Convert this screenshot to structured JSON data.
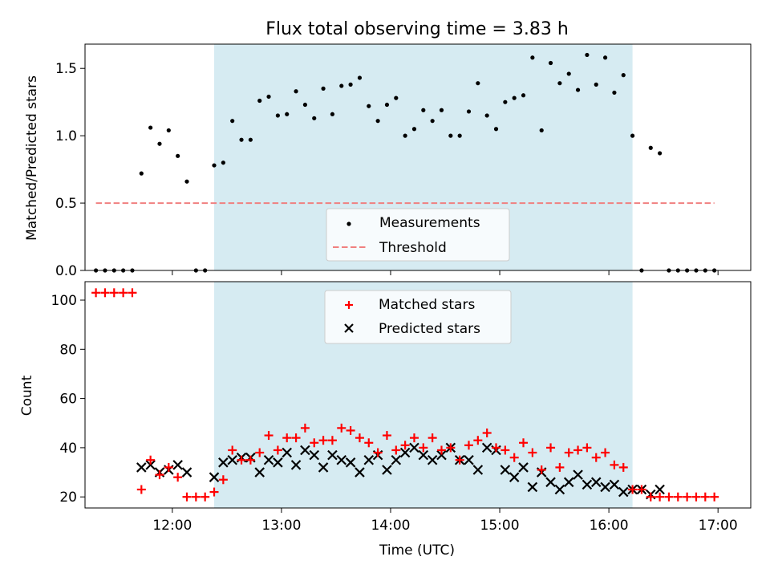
{
  "chart_data": [
    {
      "type": "scatter",
      "title": "Flux total observing time = 3.83 h",
      "xlabel": "",
      "ylabel": "Matched/Predicted stars",
      "xlim": [
        "11:12",
        "17:18"
      ],
      "ylim": [
        0,
        1.68
      ],
      "yticks": [
        "0.0",
        "0.5",
        "1.0",
        "1.5"
      ],
      "shaded_interval": [
        "12:23",
        "16:13"
      ],
      "legend": {
        "placement": "bottom-center",
        "entries": [
          "Measurements",
          "Threshold"
        ]
      },
      "series": [
        {
          "name": "Measurements",
          "marker": "dot",
          "color": "#000000",
          "x": [
            "11:18",
            "11:23",
            "11:28",
            "11:33",
            "11:38",
            "11:43",
            "11:48",
            "11:53",
            "11:58",
            "12:03",
            "12:08",
            "12:13",
            "12:18",
            "12:23",
            "12:28",
            "12:33",
            "12:38",
            "12:43",
            "12:48",
            "12:53",
            "12:58",
            "13:03",
            "13:08",
            "13:13",
            "13:18",
            "13:23",
            "13:28",
            "13:33",
            "13:38",
            "13:43",
            "13:48",
            "13:53",
            "13:58",
            "14:03",
            "14:08",
            "14:13",
            "14:18",
            "14:23",
            "14:28",
            "14:33",
            "14:38",
            "14:43",
            "14:48",
            "14:53",
            "14:58",
            "15:03",
            "15:08",
            "15:13",
            "15:18",
            "15:23",
            "15:28",
            "15:33",
            "15:38",
            "15:43",
            "15:48",
            "15:53",
            "15:58",
            "16:03",
            "16:08",
            "16:13",
            "16:18",
            "16:23",
            "16:28",
            "16:33",
            "16:38",
            "16:43",
            "16:48",
            "16:53",
            "16:58"
          ],
          "y": [
            0,
            0,
            0,
            0,
            0,
            0.72,
            1.06,
            0.94,
            1.04,
            0.85,
            0.66,
            0,
            0,
            0.78,
            0.8,
            1.11,
            0.97,
            0.97,
            1.26,
            1.29,
            1.15,
            1.16,
            1.33,
            1.23,
            1.13,
            1.35,
            1.16,
            1.37,
            1.38,
            1.43,
            1.22,
            1.11,
            1.23,
            1.28,
            1.0,
            1.05,
            1.19,
            1.11,
            1.19,
            1.0,
            1.0,
            1.18,
            1.39,
            1.15,
            1.05,
            1.25,
            1.28,
            1.3,
            1.58,
            1.04,
            1.54,
            1.39,
            1.46,
            1.34,
            1.6,
            1.38,
            1.58,
            1.32,
            1.45,
            1.0,
            0,
            0.91,
            0.87,
            0,
            0,
            0,
            0,
            0,
            0
          ]
        },
        {
          "name": "Threshold",
          "marker": "dashed-line",
          "color": "#f08080",
          "x": [
            "11:18",
            "16:58"
          ],
          "y": [
            0.5,
            0.5
          ]
        }
      ]
    },
    {
      "type": "scatter",
      "title": "",
      "xlabel": "Time (UTC)",
      "ylabel": "Count",
      "xlim": [
        "11:12",
        "17:18"
      ],
      "ylim": [
        15.5,
        107.5
      ],
      "xticks": [
        "12:00",
        "13:00",
        "14:00",
        "15:00",
        "16:00",
        "17:00"
      ],
      "yticks": [
        "20",
        "40",
        "60",
        "80",
        "100"
      ],
      "shaded_interval": [
        "12:23",
        "16:13"
      ],
      "legend": {
        "placement": "top-center",
        "entries": [
          "Matched stars",
          "Predicted stars"
        ]
      },
      "series": [
        {
          "name": "Matched stars",
          "marker": "plus",
          "color": "#ff0000",
          "x": [
            "11:18",
            "11:23",
            "11:28",
            "11:33",
            "11:38",
            "11:43",
            "11:48",
            "11:53",
            "11:58",
            "12:03",
            "12:08",
            "12:13",
            "12:18",
            "12:23",
            "12:28",
            "12:33",
            "12:38",
            "12:43",
            "12:48",
            "12:53",
            "12:58",
            "13:03",
            "13:08",
            "13:13",
            "13:18",
            "13:23",
            "13:28",
            "13:33",
            "13:38",
            "13:43",
            "13:48",
            "13:53",
            "13:58",
            "14:03",
            "14:08",
            "14:13",
            "14:18",
            "14:23",
            "14:28",
            "14:33",
            "14:38",
            "14:43",
            "14:48",
            "14:53",
            "14:58",
            "15:03",
            "15:08",
            "15:13",
            "15:18",
            "15:23",
            "15:28",
            "15:33",
            "15:38",
            "15:43",
            "15:48",
            "15:53",
            "15:58",
            "16:03",
            "16:08",
            "16:13",
            "16:18",
            "16:23",
            "16:28",
            "16:33",
            "16:38",
            "16:43",
            "16:48",
            "16:53",
            "16:58"
          ],
          "y": [
            103,
            103,
            103,
            103,
            103,
            23,
            35,
            29,
            32,
            28,
            20,
            20,
            20,
            22,
            27,
            39,
            35,
            35,
            38,
            45,
            39,
            44,
            44,
            48,
            42,
            43,
            43,
            48,
            47,
            44,
            42,
            38,
            45,
            39,
            41,
            44,
            40,
            44,
            39,
            40,
            35,
            41,
            43,
            46,
            40,
            39,
            36,
            42,
            38,
            31,
            40,
            32,
            38,
            39,
            40,
            36,
            38,
            33,
            32,
            23,
            23,
            20,
            20,
            20,
            20,
            20,
            20,
            20,
            20
          ]
        },
        {
          "name": "Predicted stars",
          "marker": "x",
          "color": "#000000",
          "x": [
            "11:43",
            "11:48",
            "11:53",
            "11:58",
            "12:03",
            "12:08",
            "12:23",
            "12:28",
            "12:33",
            "12:38",
            "12:43",
            "12:48",
            "12:53",
            "12:58",
            "13:03",
            "13:08",
            "13:13",
            "13:18",
            "13:23",
            "13:28",
            "13:33",
            "13:38",
            "13:43",
            "13:48",
            "13:53",
            "13:58",
            "14:03",
            "14:08",
            "14:13",
            "14:18",
            "14:23",
            "14:28",
            "14:33",
            "14:38",
            "14:43",
            "14:48",
            "14:53",
            "14:58",
            "15:03",
            "15:08",
            "15:13",
            "15:18",
            "15:23",
            "15:28",
            "15:33",
            "15:38",
            "15:43",
            "15:48",
            "15:53",
            "15:58",
            "16:03",
            "16:08",
            "16:13",
            "16:18",
            "16:23",
            "16:28"
          ],
          "y": [
            32,
            33,
            30,
            31,
            33,
            30,
            28,
            34,
            35,
            36,
            36,
            30,
            35,
            34,
            38,
            33,
            39,
            37,
            32,
            37,
            35,
            34,
            30,
            35,
            37,
            31,
            35,
            38,
            40,
            37,
            35,
            37,
            40,
            35,
            35,
            31,
            40,
            39,
            31,
            28,
            32,
            24,
            30,
            26,
            23,
            26,
            29,
            25,
            26,
            24,
            25,
            22,
            23,
            23,
            21,
            23
          ]
        }
      ]
    }
  ]
}
